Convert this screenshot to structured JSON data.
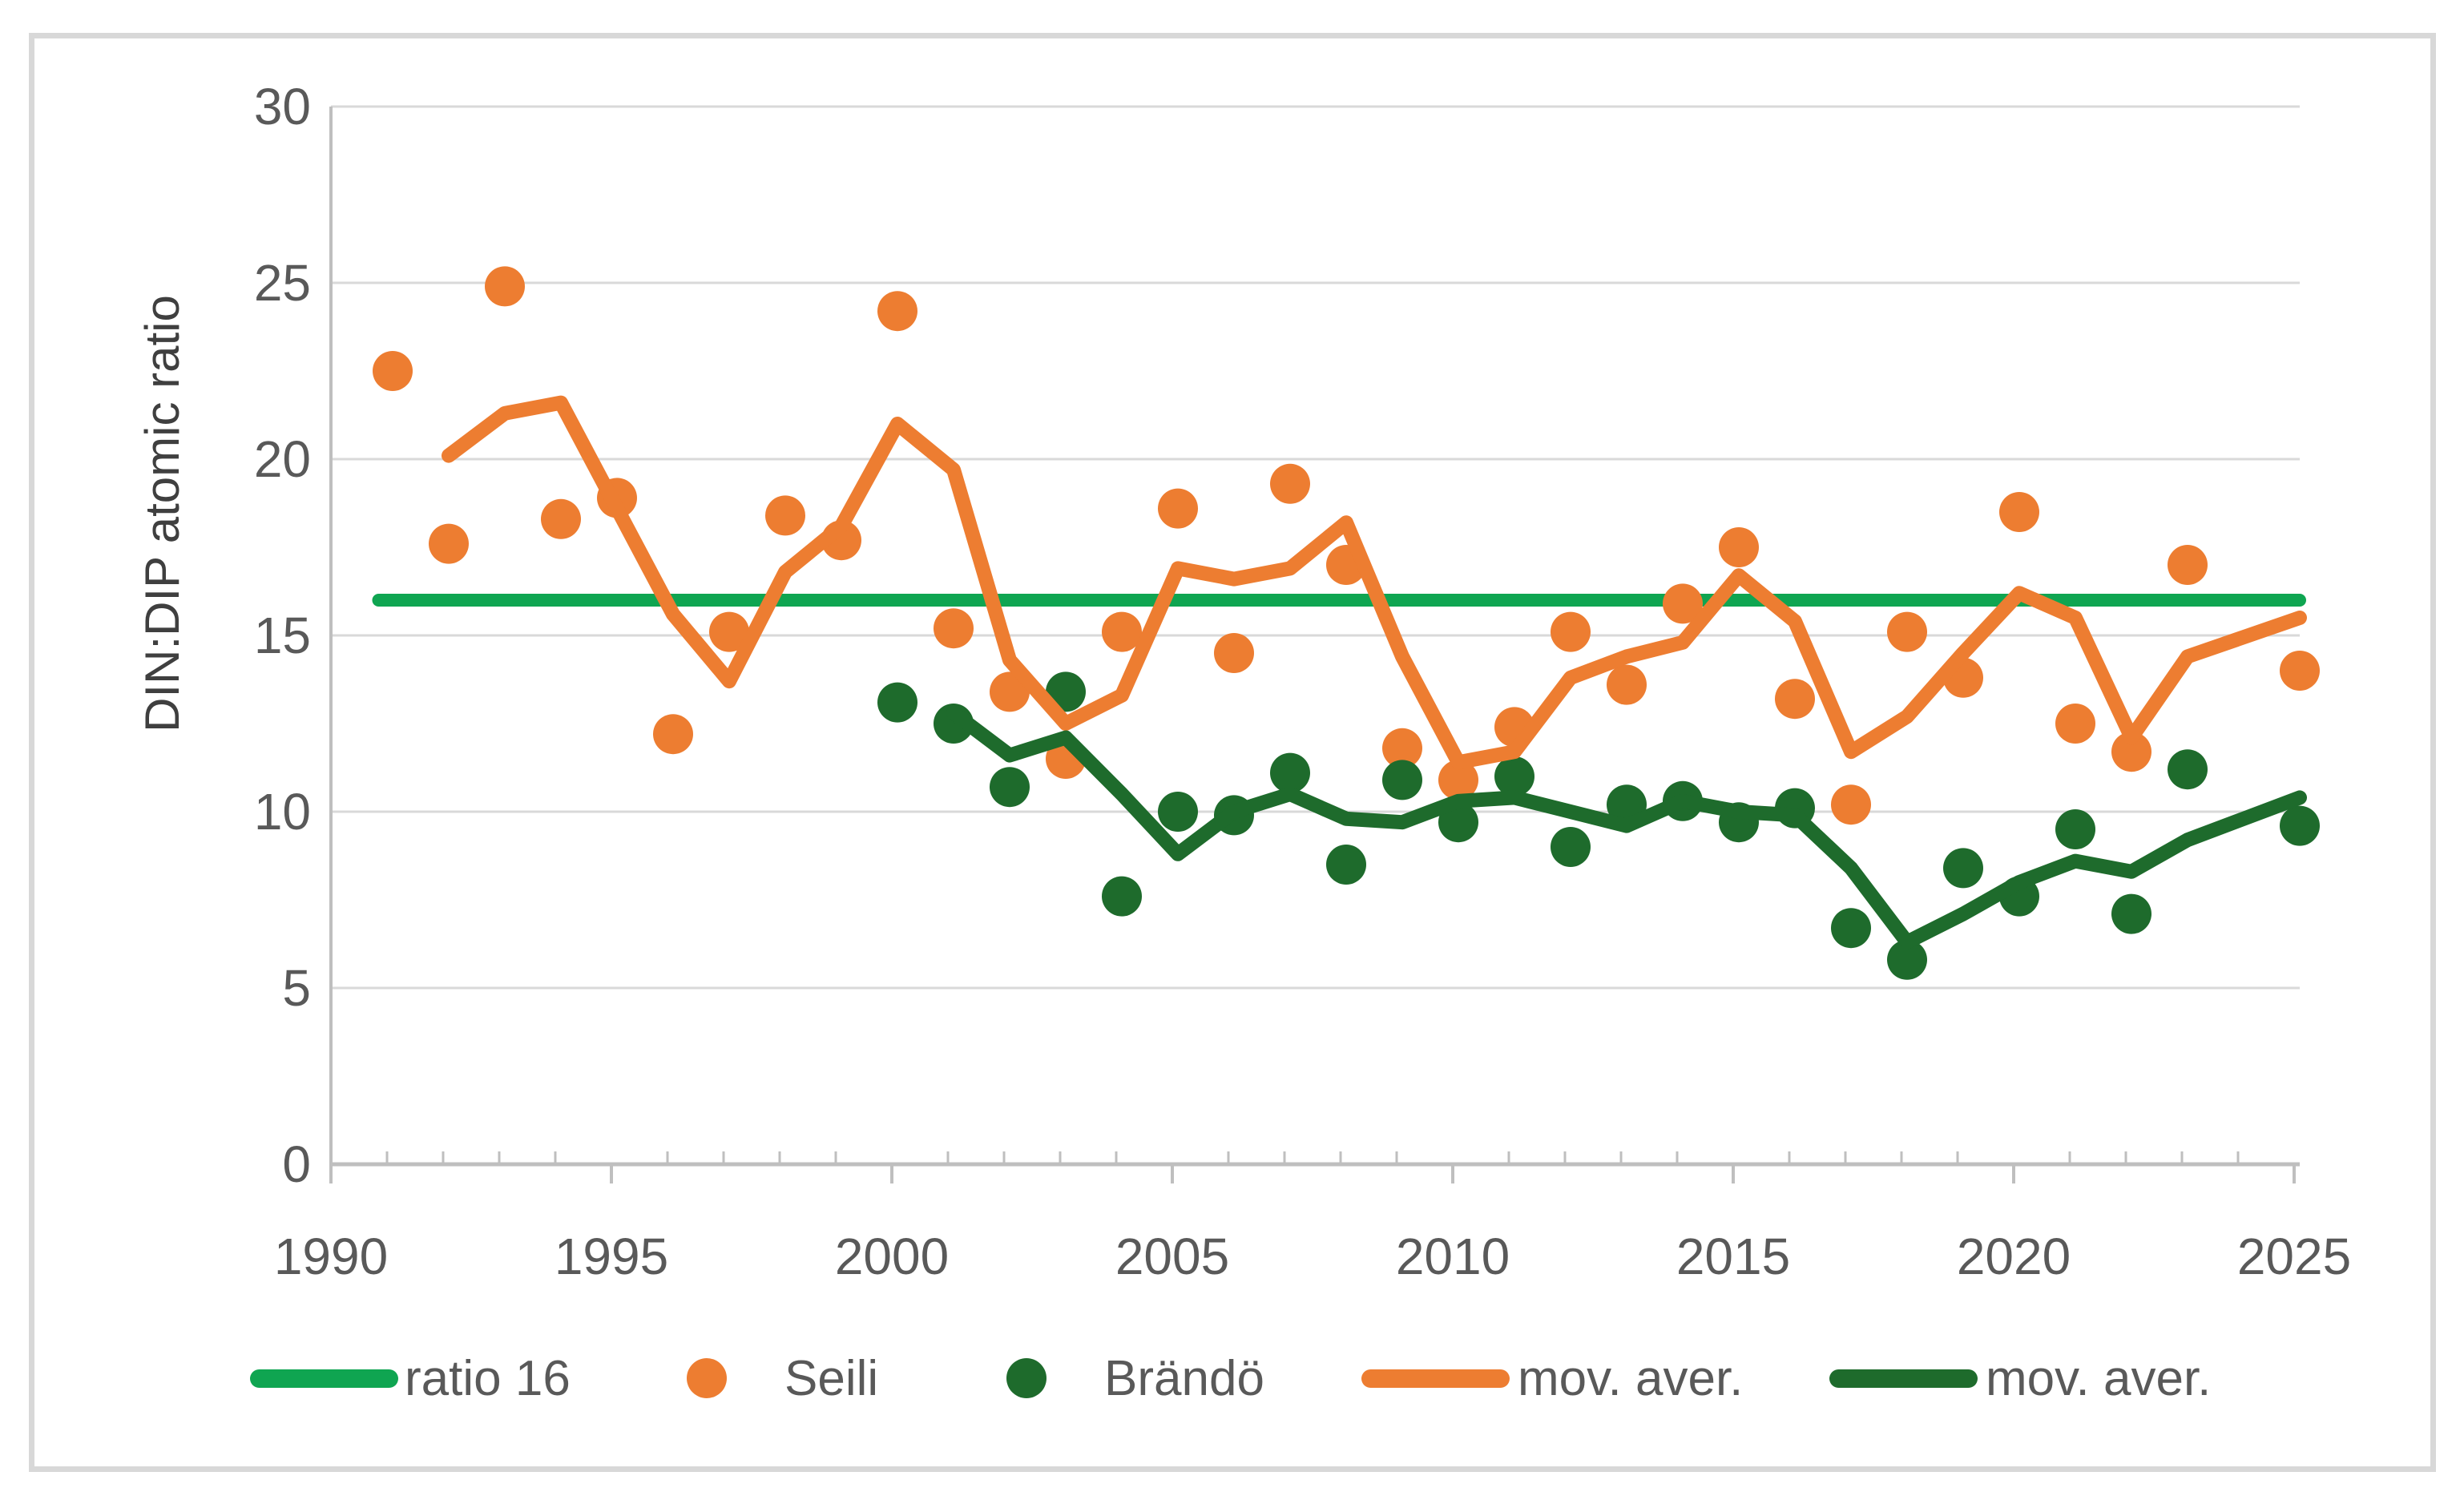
{
  "y_axis_title": "DIN:DIP atomic ratio",
  "legend": {
    "items": [
      {
        "label": "ratio 16",
        "swatch": "line",
        "color": "#0FA551"
      },
      {
        "label": "Seili",
        "swatch": "dot",
        "color": "#ED7D31"
      },
      {
        "label": "Brändö",
        "swatch": "dot",
        "color": "#1E6B2C"
      },
      {
        "label": "mov. aver.",
        "swatch": "line",
        "color": "#ED7D31"
      },
      {
        "label": "mov. aver.",
        "swatch": "line",
        "color": "#1E6B2C"
      }
    ]
  },
  "colors": {
    "seili": "#ED7D31",
    "brando": "#1E6B2C",
    "ratio_line": "#0FA551",
    "gridline": "#D9D9D9",
    "axis_line": "#BFBFBF",
    "tick_label": "#595959",
    "frame_border": "#D8D8D8"
  },
  "chart_data": {
    "type": "scatter",
    "title": "",
    "xlabel": "",
    "ylabel": "DIN:DIP atomic ratio",
    "xlim": [
      1990,
      2025.1
    ],
    "ylim": [
      0,
      30
    ],
    "grid": "horizontal",
    "legend_position": "bottom",
    "y_ticks": [
      0,
      5,
      10,
      15,
      20,
      25,
      30
    ],
    "x_ticks": [
      1990,
      1995,
      2000,
      2005,
      2010,
      2015,
      2020,
      2025
    ],
    "series": [
      {
        "name": "ratio 16",
        "type": "hline",
        "value": 16,
        "x_start": 1990.85,
        "x_end": 2025.1
      },
      {
        "name": "Seili",
        "type": "scatter",
        "points": [
          [
            1991,
            22.5
          ],
          [
            1992,
            17.6
          ],
          [
            1993,
            24.9
          ],
          [
            1994,
            18.3
          ],
          [
            1995,
            18.9
          ],
          [
            1996,
            12.2
          ],
          [
            1997,
            15.1
          ],
          [
            1998,
            18.4
          ],
          [
            1999,
            17.7
          ],
          [
            2000,
            24.2
          ],
          [
            2001,
            15.2
          ],
          [
            2002,
            13.4
          ],
          [
            2003,
            11.5
          ],
          [
            2004,
            15.1
          ],
          [
            2005,
            18.6
          ],
          [
            2006,
            14.5
          ],
          [
            2007,
            19.3
          ],
          [
            2008,
            17.0
          ],
          [
            2009,
            11.8
          ],
          [
            2010,
            10.9
          ],
          [
            2011,
            12.4
          ],
          [
            2012,
            15.1
          ],
          [
            2013,
            13.6
          ],
          [
            2014,
            15.9
          ],
          [
            2015,
            17.5
          ],
          [
            2016,
            13.2
          ],
          [
            2017,
            10.2
          ],
          [
            2018,
            15.1
          ],
          [
            2019,
            13.8
          ],
          [
            2020,
            18.5
          ],
          [
            2021,
            12.5
          ],
          [
            2022,
            11.7
          ],
          [
            2023,
            17.0
          ],
          [
            2025,
            14.0
          ]
        ]
      },
      {
        "name": "Brändö",
        "type": "scatter",
        "points": [
          [
            2000,
            13.1
          ],
          [
            2001,
            12.5
          ],
          [
            2002,
            10.7
          ],
          [
            2003,
            13.4
          ],
          [
            2004,
            7.6
          ],
          [
            2005,
            10.0
          ],
          [
            2006,
            9.9
          ],
          [
            2007,
            11.1
          ],
          [
            2008,
            8.5
          ],
          [
            2009,
            10.9
          ],
          [
            2010,
            9.7
          ],
          [
            2011,
            11.0
          ],
          [
            2012,
            9.0
          ],
          [
            2013,
            10.2
          ],
          [
            2014,
            10.3
          ],
          [
            2015,
            9.7
          ],
          [
            2016,
            10.1
          ],
          [
            2017,
            6.7
          ],
          [
            2018,
            5.8
          ],
          [
            2019,
            8.4
          ],
          [
            2020,
            7.6
          ],
          [
            2021,
            9.5
          ],
          [
            2022,
            7.1
          ],
          [
            2023,
            11.2
          ],
          [
            2025,
            9.6
          ]
        ]
      },
      {
        "name": "mov. aver. (Seili)",
        "type": "line",
        "points": [
          [
            1992,
            20.1
          ],
          [
            1993,
            21.3
          ],
          [
            1994,
            21.6
          ],
          [
            1995,
            18.6
          ],
          [
            1996,
            15.6
          ],
          [
            1997,
            13.7
          ],
          [
            1998,
            16.8
          ],
          [
            1999,
            18.1
          ],
          [
            2000,
            21.0
          ],
          [
            2001,
            19.7
          ],
          [
            2002,
            14.3
          ],
          [
            2003,
            12.5
          ],
          [
            2004,
            13.3
          ],
          [
            2005,
            16.9
          ],
          [
            2006,
            16.6
          ],
          [
            2007,
            16.9
          ],
          [
            2008,
            18.2
          ],
          [
            2009,
            14.4
          ],
          [
            2010,
            11.4
          ],
          [
            2011,
            11.7
          ],
          [
            2012,
            13.8
          ],
          [
            2013,
            14.4
          ],
          [
            2014,
            14.8
          ],
          [
            2015,
            16.7
          ],
          [
            2016,
            15.4
          ],
          [
            2017,
            11.7
          ],
          [
            2018,
            12.7
          ],
          [
            2019,
            14.5
          ],
          [
            2020,
            16.2
          ],
          [
            2021,
            15.5
          ],
          [
            2022,
            12.1
          ],
          [
            2023,
            14.4
          ],
          [
            2025,
            15.5
          ]
        ]
      },
      {
        "name": "mov. aver. (Brändö)",
        "type": "line",
        "points": [
          [
            2001,
            12.8
          ],
          [
            2002,
            11.6
          ],
          [
            2003,
            12.1
          ],
          [
            2004,
            10.5
          ],
          [
            2005,
            8.8
          ],
          [
            2006,
            10.0
          ],
          [
            2007,
            10.5
          ],
          [
            2008,
            9.8
          ],
          [
            2009,
            9.7
          ],
          [
            2010,
            10.3
          ],
          [
            2011,
            10.4
          ],
          [
            2012,
            10.0
          ],
          [
            2013,
            9.6
          ],
          [
            2014,
            10.3
          ],
          [
            2015,
            10.0
          ],
          [
            2016,
            9.9
          ],
          [
            2017,
            8.4
          ],
          [
            2018,
            6.3
          ],
          [
            2019,
            7.1
          ],
          [
            2020,
            8.0
          ],
          [
            2021,
            8.6
          ],
          [
            2022,
            8.3
          ],
          [
            2023,
            9.2
          ],
          [
            2025,
            10.4
          ]
        ]
      }
    ]
  }
}
